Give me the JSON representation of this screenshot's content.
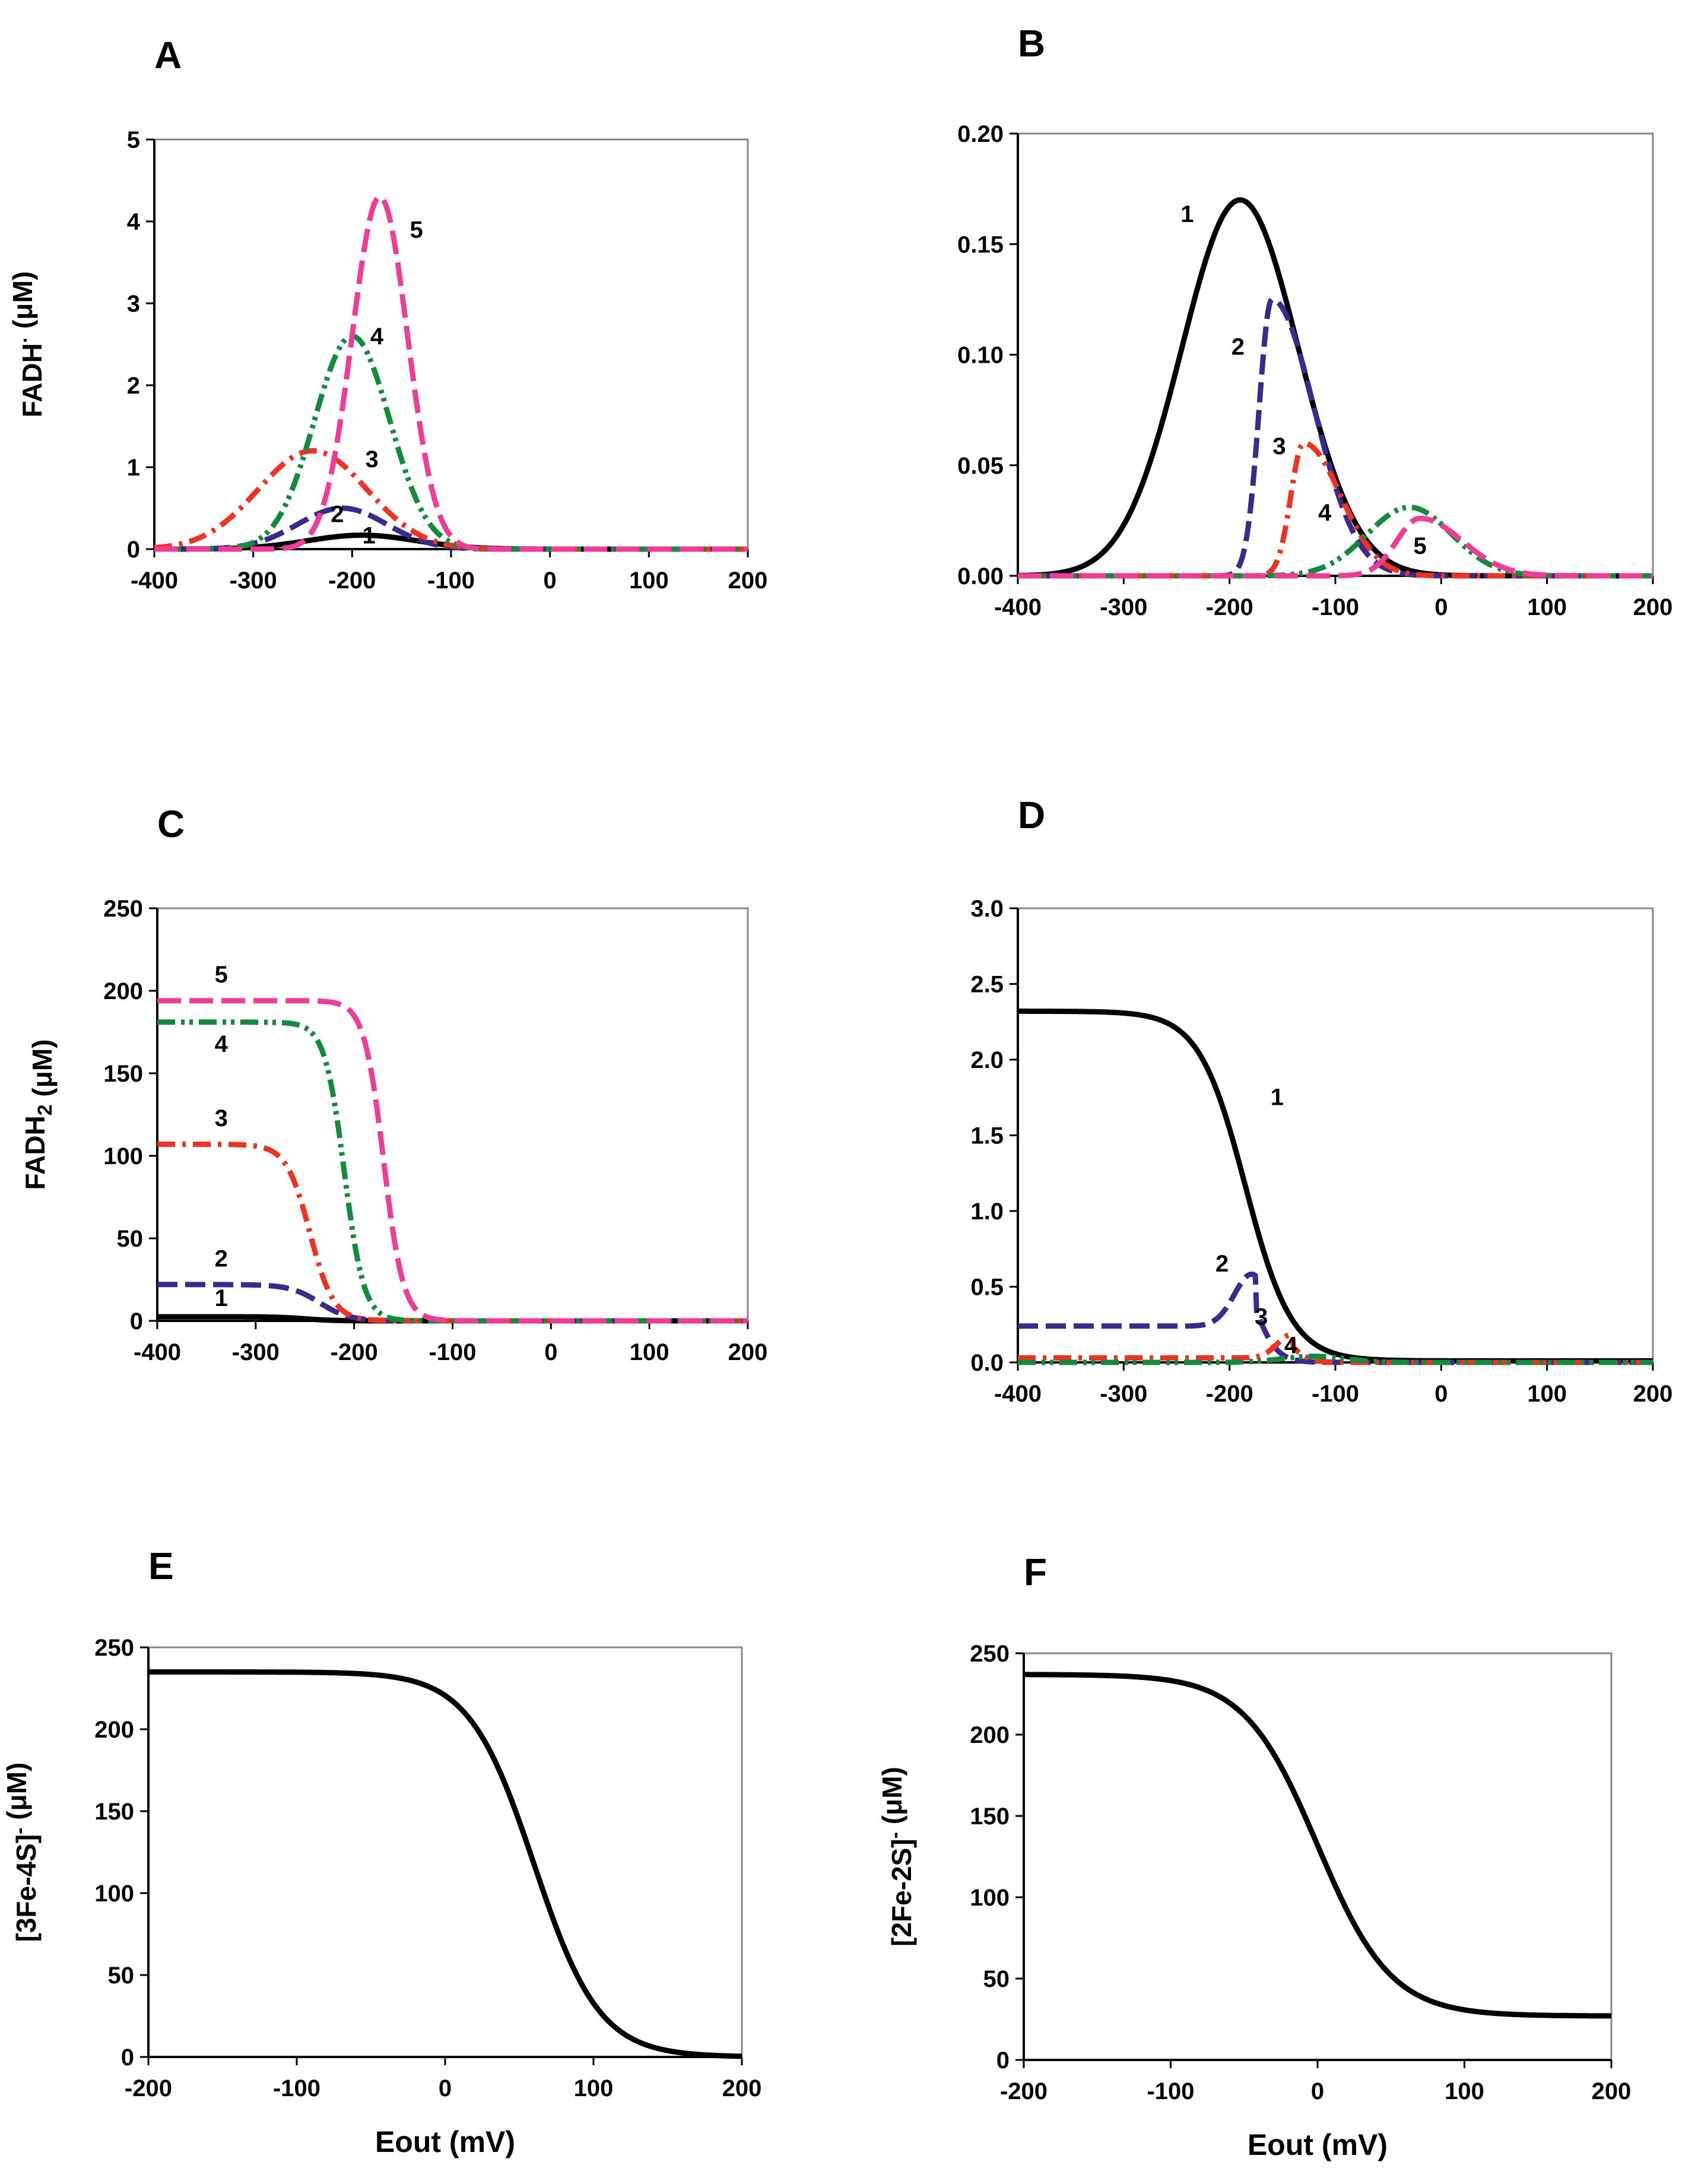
{
  "colors": {
    "1": "#000000",
    "2": "#3a2a8c",
    "3": "#ee3322",
    "4": "#138a3c",
    "5": "#ee3d96"
  },
  "chart_data": [
    {
      "panel": "A",
      "type": "line",
      "ylabel_main": "FADH",
      "ylabel_sup": "·",
      "ylabel_unit": " (μM)",
      "xlabel": "",
      "xlim": [
        -400,
        200
      ],
      "ylim": [
        0,
        5
      ],
      "xticks": [
        -400,
        -300,
        -200,
        -100,
        0,
        100,
        200
      ],
      "yticks": [
        0,
        1,
        2,
        3,
        4,
        5
      ],
      "ytick_labels": [
        "0",
        "1",
        "2",
        "3",
        "4",
        "5"
      ],
      "series": [
        {
          "name": "1",
          "model": "peak",
          "x0": -190,
          "h": 0.17,
          "sl": 55,
          "sr": 55
        },
        {
          "name": "2",
          "model": "peak",
          "x0": -210,
          "h": 0.5,
          "sl": 45,
          "sr": 45
        },
        {
          "name": "3",
          "model": "peak",
          "x0": -240,
          "h": 1.2,
          "sl": 55,
          "sr": 55
        },
        {
          "name": "4",
          "model": "peak",
          "x0": -200,
          "h": 2.6,
          "sl": 38,
          "sr": 38
        },
        {
          "name": "5",
          "model": "peak",
          "x0": -172,
          "h": 4.3,
          "sl": 28,
          "sr": 28
        }
      ],
      "curve_labels": [
        {
          "text": "1",
          "x": -183,
          "y": 0.07
        },
        {
          "text": "2",
          "x": -215,
          "y": 0.33
        },
        {
          "text": "3",
          "x": -180,
          "y": 1.0
        },
        {
          "text": "4",
          "x": -175,
          "y": 2.5
        },
        {
          "text": "5",
          "x": -135,
          "y": 3.8
        }
      ]
    },
    {
      "panel": "B",
      "type": "line",
      "ylabel_main": "",
      "ylabel_sup": "",
      "ylabel_unit": "",
      "xlabel": "",
      "xlim": [
        -400,
        200
      ],
      "ylim": [
        0,
        0.2
      ],
      "xticks": [
        -400,
        -300,
        -200,
        -100,
        0,
        100,
        200
      ],
      "yticks": [
        0,
        0.05,
        0.1,
        0.15,
        0.2
      ],
      "ytick_labels": [
        "0.00",
        "0.05",
        "0.10",
        "0.15",
        "0.20"
      ],
      "series": [
        {
          "name": "1",
          "model": "peak",
          "x0": -190,
          "h": 0.17,
          "sl": 55,
          "sr": 55
        },
        {
          "name": "2",
          "model": "peak",
          "x0": -160,
          "h": 0.125,
          "sl": 12,
          "sr": 40
        },
        {
          "name": "3",
          "model": "peak",
          "x0": -130,
          "h": 0.06,
          "sl": 12,
          "sr": 35
        },
        {
          "name": "4",
          "model": "peak",
          "x0": -30,
          "h": 0.031,
          "sl": 40,
          "sr": 40
        },
        {
          "name": "5",
          "model": "peak",
          "x0": -20,
          "h": 0.026,
          "sl": 22,
          "sr": 40
        }
      ],
      "curve_labels": [
        {
          "text": "1",
          "x": -240,
          "y": 0.16
        },
        {
          "text": "2",
          "x": -192,
          "y": 0.1
        },
        {
          "text": "3",
          "x": -153,
          "y": 0.055
        },
        {
          "text": "4",
          "x": -110,
          "y": 0.025
        },
        {
          "text": "5",
          "x": -20,
          "y": 0.01
        }
      ]
    },
    {
      "panel": "C",
      "type": "line",
      "ylabel_main": "FADH",
      "ylabel_sub": "2",
      "ylabel_unit": " (μM)",
      "xlabel": "",
      "xlim": [
        -400,
        200
      ],
      "ylim": [
        0,
        250
      ],
      "xticks": [
        -400,
        -300,
        -200,
        -100,
        0,
        100,
        200
      ],
      "yticks": [
        0,
        50,
        100,
        150,
        200,
        250
      ],
      "ytick_labels": [
        "0",
        "50",
        "100",
        "150",
        "200",
        "250"
      ],
      "series": [
        {
          "name": "1",
          "model": "sig",
          "top": 2.5,
          "bottom": 0,
          "x0": -250,
          "s": 15
        },
        {
          "name": "2",
          "model": "sig",
          "top": 22,
          "bottom": 0,
          "x0": -235,
          "s": 15
        },
        {
          "name": "3",
          "model": "sig",
          "top": 107,
          "bottom": 0,
          "x0": -245,
          "s": 12
        },
        {
          "name": "4",
          "model": "sig",
          "top": 181,
          "bottom": 0,
          "x0": -210,
          "s": 10
        },
        {
          "name": "5",
          "model": "sig",
          "top": 194,
          "bottom": 0,
          "x0": -170,
          "s": 10
        }
      ],
      "curve_labels": [
        {
          "text": "1",
          "x": -335,
          "y": 9
        },
        {
          "text": "2",
          "x": -335,
          "y": 33
        },
        {
          "text": "3",
          "x": -335,
          "y": 118
        },
        {
          "text": "4",
          "x": -335,
          "y": 163
        },
        {
          "text": "5",
          "x": -335,
          "y": 205
        }
      ]
    },
    {
      "panel": "D",
      "type": "line",
      "ylabel_main": "",
      "ylabel_sup": "",
      "ylabel_unit": "",
      "xlabel": "",
      "xlim": [
        -400,
        200
      ],
      "ylim": [
        0,
        3
      ],
      "xticks": [
        -400,
        -300,
        -200,
        -100,
        0,
        100,
        200
      ],
      "yticks": [
        0,
        0.5,
        1,
        1.5,
        2,
        2.5,
        3
      ],
      "ytick_labels": [
        "0.0",
        "0.5",
        "1.0",
        "1.5",
        "2.0",
        "2.5",
        "3.0"
      ],
      "series": [
        {
          "name": "1",
          "model": "sig",
          "top": 2.32,
          "bottom": 0.01,
          "x0": -185,
          "s": 22
        },
        {
          "name": "2",
          "model": "sigpeak",
          "base": 0.24,
          "x0": -175,
          "h": 0.45,
          "sl": 18,
          "sx": -175,
          "ss": 10
        },
        {
          "name": "3",
          "model": "sigpeak",
          "base": 0.03,
          "x0": -140,
          "h": 0.17,
          "sl": 14,
          "sx": -140,
          "ss": 8
        },
        {
          "name": "4",
          "model": "peak",
          "x0": -120,
          "h": 0.04,
          "sl": 30,
          "sr": 30
        }
      ],
      "curve_labels": [
        {
          "text": "1",
          "x": -155,
          "y": 1.7
        },
        {
          "text": "2",
          "x": -207,
          "y": 0.6
        },
        {
          "text": "3",
          "x": -170,
          "y": 0.25
        },
        {
          "text": "4",
          "x": -142,
          "y": 0.06
        }
      ]
    },
    {
      "panel": "E",
      "type": "line",
      "ylabel_main": "[3Fe-4S]",
      "ylabel_sup": "-",
      "ylabel_unit": " (μM)",
      "xlabel": "Eout  (mV)",
      "xlim": [
        -200,
        200
      ],
      "ylim": [
        0,
        250
      ],
      "xticks": [
        -200,
        -100,
        0,
        100,
        200
      ],
      "yticks": [
        0,
        50,
        100,
        150,
        200,
        250
      ],
      "ytick_labels": [
        "0",
        "50",
        "100",
        "150",
        "200",
        "250"
      ],
      "series": [
        {
          "name": "1",
          "model": "sig",
          "top": 235,
          "bottom": 0,
          "x0": 60,
          "s": 22
        }
      ],
      "curve_labels": []
    },
    {
      "panel": "F",
      "type": "line",
      "ylabel_main": "[2Fe-2S]",
      "ylabel_sup": "-",
      "ylabel_unit": " (μM)",
      "xlabel": "Eout   (mV)",
      "xlim": [
        -200,
        200
      ],
      "ylim": [
        0,
        250
      ],
      "xticks": [
        -200,
        -100,
        0,
        100,
        200
      ],
      "yticks": [
        0,
        50,
        100,
        150,
        200,
        250
      ],
      "ytick_labels": [
        "0",
        "50",
        "100",
        "150",
        "200",
        "250"
      ],
      "series": [
        {
          "name": "1",
          "model": "sig",
          "top": 237,
          "bottom": 27,
          "x0": 0,
          "s": 25
        }
      ],
      "curve_labels": []
    }
  ]
}
